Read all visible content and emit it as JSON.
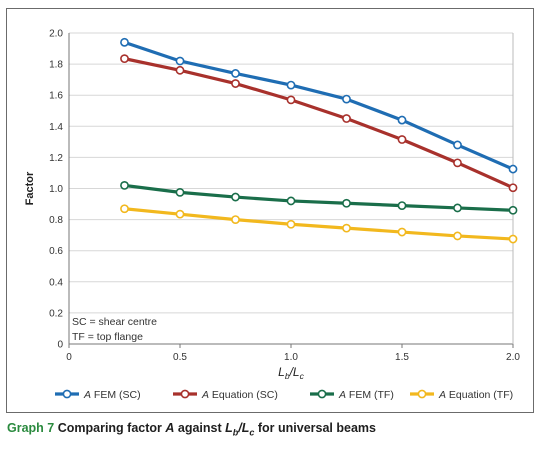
{
  "chart_data": {
    "type": "line",
    "x": [
      0.25,
      0.5,
      0.75,
      1.0,
      1.25,
      1.5,
      1.75,
      2.0
    ],
    "series": [
      {
        "name": "FEM (SC)",
        "color": "#1f6db3",
        "values": [
          1.94,
          1.82,
          1.74,
          1.665,
          1.575,
          1.44,
          1.28,
          1.125
        ]
      },
      {
        "name": "Equation (SC)",
        "color": "#a8312c",
        "values": [
          1.835,
          1.76,
          1.675,
          1.57,
          1.45,
          1.315,
          1.165,
          1.005
        ]
      },
      {
        "name": "FEM (TF)",
        "color": "#1a6e4a",
        "values": [
          1.02,
          0.975,
          0.945,
          0.92,
          0.905,
          0.89,
          0.875,
          0.86
        ]
      },
      {
        "name": "Equation (TF)",
        "color": "#f2b81e",
        "values": [
          0.87,
          0.835,
          0.8,
          0.77,
          0.745,
          0.72,
          0.695,
          0.675
        ]
      }
    ],
    "series_prefix": "A",
    "ylabel": "Factor",
    "xlabel_main": "L",
    "xlabel_sub1": "b",
    "xlabel_sep": "/L",
    "xlabel_sub2": "c",
    "xlim": [
      0,
      2.0
    ],
    "ylim": [
      0,
      2.0
    ],
    "xticks": [
      "0",
      "0.5",
      "1.0",
      "1.5",
      "2.0"
    ],
    "yticks": [
      "0",
      "0.2",
      "0.4",
      "0.6",
      "0.8",
      "1.0",
      "1.2",
      "1.4",
      "1.6",
      "1.8",
      "2.0"
    ],
    "grid": "horizontal",
    "legend_position": "bottom",
    "annotations": [
      "SC = shear centre",
      "TF = top flange"
    ]
  },
  "caption": {
    "label": "Graph 7",
    "text_before": " Comparing factor ",
    "italic_a": "A",
    "text_mid": " against ",
    "l1": "L",
    "s1": "b",
    "sep": "/L",
    "s2": "c",
    "text_after": " for universal beams"
  }
}
